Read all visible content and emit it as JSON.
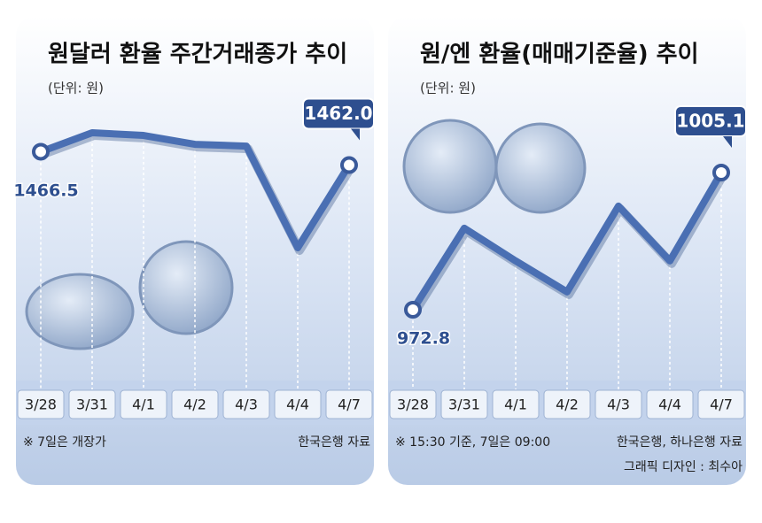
{
  "chart_data": [
    {
      "type": "line",
      "title": "원달러 환율 주간거래종가 추이",
      "subtitle": "(단위: 원)",
      "categories": [
        "3/28",
        "3/31",
        "4/1",
        "4/2",
        "4/3",
        "4/4",
        "4/7"
      ],
      "values": [
        1466.5,
        1472.9,
        1472.0,
        1469.0,
        1468.4,
        1434.1,
        1462.0
      ],
      "value_labels": [
        "1466.5",
        null,
        null,
        null,
        null,
        null,
        "1462.0"
      ],
      "color": "#4a6fb3",
      "note": "※ 7일은 개장가",
      "source": "한국은행 자료"
    },
    {
      "type": "line",
      "title": "원/엔 환율(매매기준율) 추이",
      "subtitle": "(단위: 원)",
      "categories": [
        "3/28",
        "3/31",
        "4/1",
        "4/2",
        "4/3",
        "4/4",
        "4/7"
      ],
      "values": [
        972.8,
        992.0,
        984.3,
        977.0,
        997.2,
        984.3,
        1005.1
      ],
      "value_labels": [
        "972.8",
        null,
        null,
        null,
        null,
        null,
        "1005.1"
      ],
      "color": "#4a6fb3",
      "note": "※ 15:30 기준, 7일은 09:00",
      "source": "한국은행, 하나은행 자료"
    }
  ],
  "credit": "그래픽 디자인 : 최수아"
}
